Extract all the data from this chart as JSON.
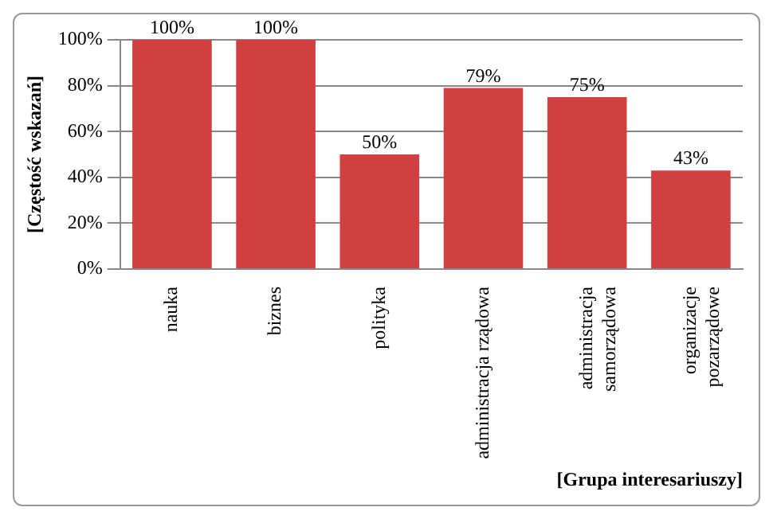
{
  "chart_data": {
    "type": "bar",
    "xlabel": "[Grupa interesariuszy]",
    "ylabel": "[Częstość wskazań]",
    "categories": [
      "nauka",
      "biznes",
      "polityka",
      "administracja rządowa",
      "administracja\nsamorządowa",
      "organizacje\npozarządowe"
    ],
    "values": [
      100,
      100,
      50,
      79,
      75,
      43
    ],
    "value_labels": [
      "100%",
      "100%",
      "50%",
      "79%",
      "75%",
      "43%"
    ],
    "color": "#d04040",
    "ylim": [
      0,
      100
    ],
    "yticks": [
      {
        "value": 0,
        "label": "0%"
      },
      {
        "value": 20,
        "label": "20%"
      },
      {
        "value": 40,
        "label": "40%"
      },
      {
        "value": 60,
        "label": "60%"
      },
      {
        "value": 80,
        "label": "80%"
      },
      {
        "value": 100,
        "label": "100%"
      }
    ],
    "grid": "y"
  }
}
